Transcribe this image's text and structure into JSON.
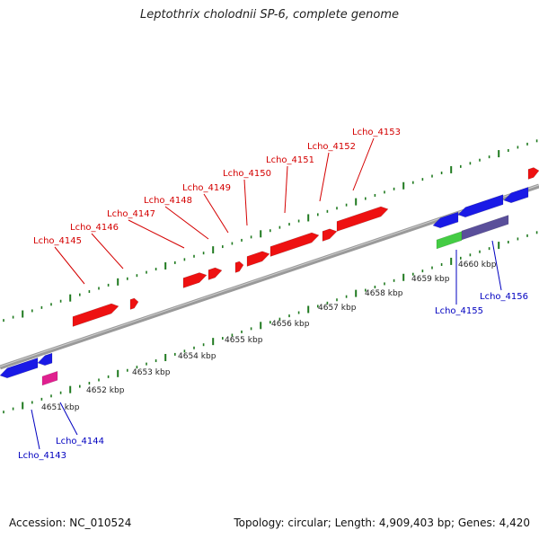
{
  "title": "Leptothrix cholodnii SP-6, complete genome",
  "footer": {
    "accession": "Accession: NC_010524",
    "info": "Topology: circular; Length: 4,909,403 bp; Genes: 4,420"
  },
  "colors": {
    "forward_gene": "#ee1111",
    "reverse_gene": "#1a1ae6",
    "green_feature": "#44cc44",
    "purple_feature": "#5a4f9a",
    "pink_feature": "#e0208f",
    "backbone": "#888888",
    "tick": "#1f7a1f",
    "forward_label": "#d40000",
    "reverse_label": "#0000c0"
  },
  "axis_labels": [
    "4651 kbp",
    "4652 kbp",
    "4653 kbp",
    "4654 kbp",
    "4655 kbp",
    "4656 kbp",
    "4657 kbp",
    "4658 kbp",
    "4659 kbp",
    "4660 kbp"
  ],
  "forward_gene_labels": [
    "Lcho_4145",
    "Lcho_4146",
    "Lcho_4147",
    "Lcho_4148",
    "Lcho_4149",
    "Lcho_4150",
    "Lcho_4151",
    "Lcho_4152",
    "Lcho_4153"
  ],
  "reverse_gene_labels": [
    "Lcho_4143",
    "Lcho_4144",
    "Lcho_4155",
    "Lcho_4156"
  ]
}
